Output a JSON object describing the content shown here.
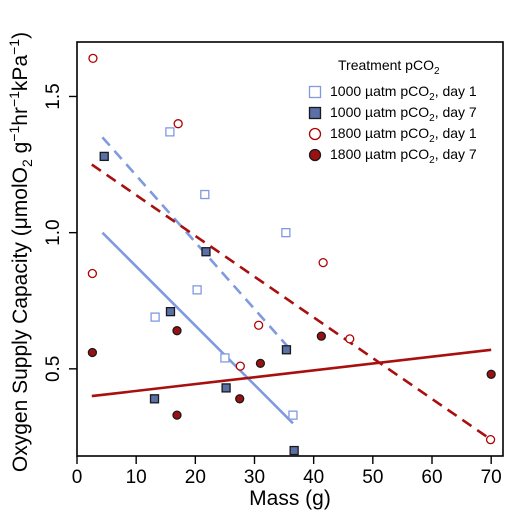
{
  "chart_data": {
    "type": "scatter",
    "xlabel": "Mass (g)",
    "ylabel_parts": {
      "a": "Oxygen Supply Capacity (",
      "mu": "μ",
      "b": "molO",
      "sub2": "2",
      "c": " g",
      "sup1": "−1",
      "d": "hr",
      "sup2": "−1",
      "e": "kPa",
      "sup3": "−1",
      "f": ")"
    },
    "xlim": [
      0,
      72
    ],
    "ylim": [
      0.18,
      1.7
    ],
    "xticks": [
      0,
      10,
      20,
      30,
      40,
      50,
      60,
      70
    ],
    "yticks": [
      0.5,
      1.0,
      1.5
    ],
    "ytick_labels": [
      "0.5",
      "1.0",
      "1.5"
    ],
    "legend": {
      "title": "Treatment pCO",
      "title_sub": "2",
      "placement": "top-right",
      "entries": [
        {
          "pre": "1000 µatm pCO",
          "sub": "2",
          "post": ", day 1"
        },
        {
          "pre": "1000 µatm pCO",
          "sub": "2",
          "post": ", day 7"
        },
        {
          "pre": "1800 µatm pCO",
          "sub": "2",
          "post": ", day 1"
        },
        {
          "pre": "1800 µatm pCO",
          "sub": "2",
          "post": ", day 7"
        }
      ]
    },
    "series": [
      {
        "marker": "square-open",
        "color": "#7f9ae0",
        "points": [
          [
            13.2,
            0.69
          ],
          [
            15.7,
            1.37
          ],
          [
            20.3,
            0.79
          ],
          [
            21.6,
            1.14
          ],
          [
            25.0,
            0.54
          ],
          [
            35.3,
            1.0
          ],
          [
            36.5,
            0.33
          ]
        ],
        "fit": {
          "x": [
            4.3,
            36.5
          ],
          "y": [
            1.35,
            0.56
          ],
          "style": "dashed"
        }
      },
      {
        "marker": "square-filled",
        "color": "#5b6fa8",
        "points": [
          [
            4.6,
            1.28
          ],
          [
            13.1,
            0.39
          ],
          [
            15.8,
            0.71
          ],
          [
            21.8,
            0.93
          ],
          [
            25.2,
            0.43
          ],
          [
            35.4,
            0.57
          ],
          [
            36.7,
            0.2
          ]
        ],
        "fit": {
          "x": [
            4.3,
            36.5
          ],
          "y": [
            1.0,
            0.3
          ],
          "style": "solid"
        }
      },
      {
        "marker": "circle-open",
        "color": "#b00000",
        "points": [
          [
            2.7,
            1.64
          ],
          [
            2.6,
            0.85
          ],
          [
            17.1,
            1.4
          ],
          [
            27.6,
            0.51
          ],
          [
            30.7,
            0.66
          ],
          [
            41.6,
            0.89
          ],
          [
            46.1,
            0.61
          ],
          [
            69.9,
            0.24
          ]
        ],
        "fit": {
          "x": [
            2.5,
            70
          ],
          "y": [
            1.25,
            0.24
          ],
          "style": "dashed"
        }
      },
      {
        "marker": "circle-filled",
        "color": "#9b1111",
        "points": [
          [
            2.6,
            0.56
          ],
          [
            16.9,
            0.64
          ],
          [
            16.9,
            0.33
          ],
          [
            27.5,
            0.39
          ],
          [
            31.0,
            0.52
          ],
          [
            41.3,
            0.62
          ],
          [
            70.0,
            0.48
          ]
        ],
        "fit": {
          "x": [
            2.5,
            70
          ],
          "y": [
            0.4,
            0.57
          ],
          "style": "solid"
        }
      }
    ],
    "fit_colors": [
      "#7f9ae0",
      "#7f9ae0",
      "#a80f0f",
      "#a80f0f"
    ]
  }
}
